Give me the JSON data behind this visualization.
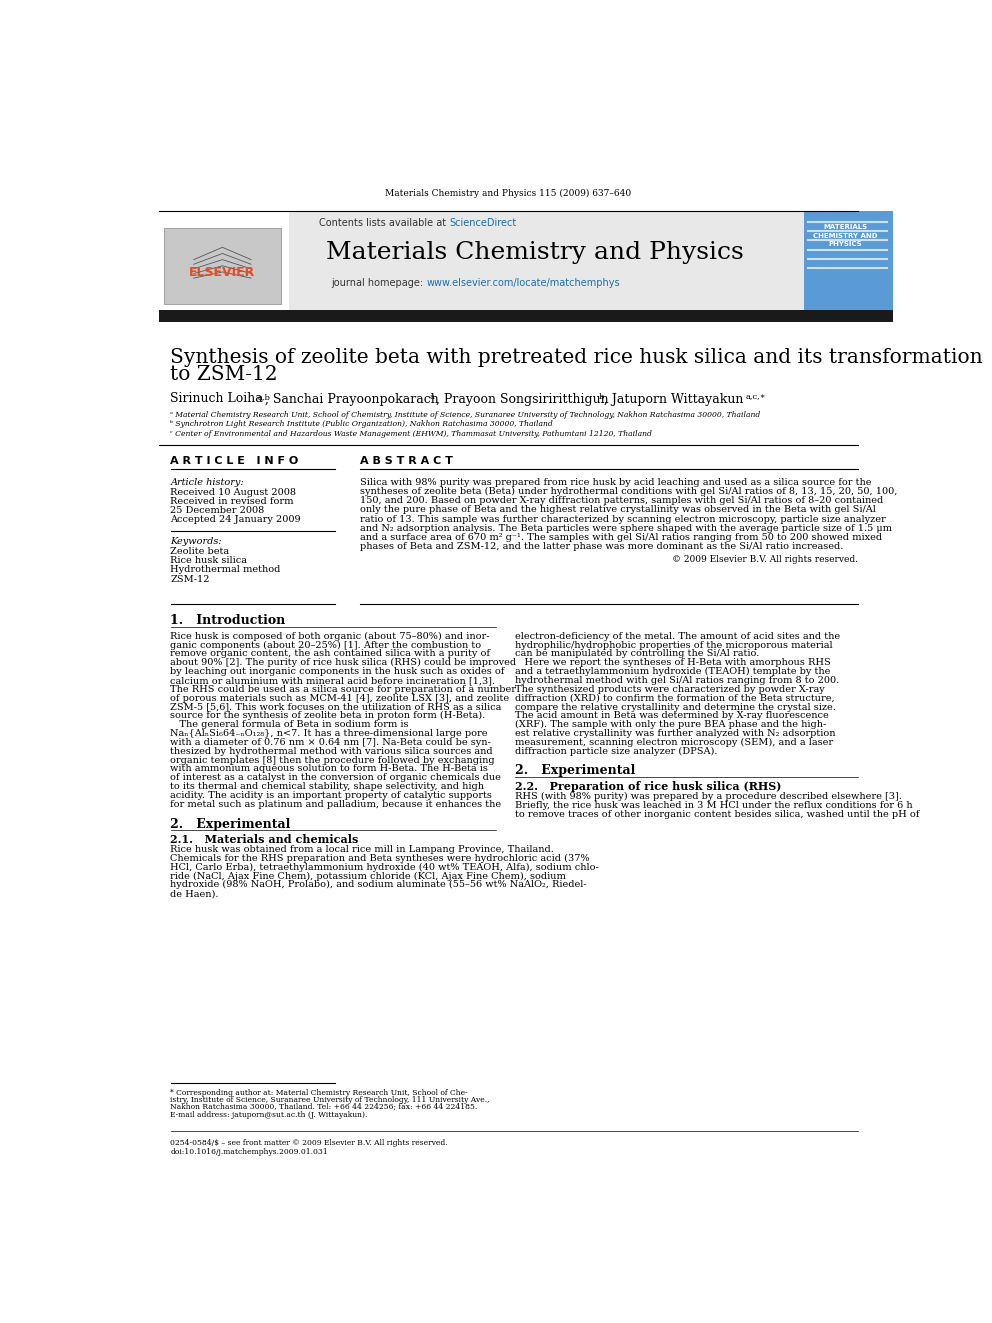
{
  "journal_info": "Materials Chemistry and Physics 115 (2009) 637–640",
  "contents_line": "Contents lists available at ScienceDirect",
  "journal_name": "Materials Chemistry and Physics",
  "journal_homepage": "journal homepage: www.elsevier.com/locate/matchemphys",
  "title_line1": "Synthesis of zeolite beta with pretreated rice husk silica and its transformation",
  "title_line2": "to ZSM-12",
  "affil_a": "ᵃ Material Chemistry Research Unit, School of Chemistry, Institute of Science, Suranaree University of Technology, Nakhon Ratchasima 30000, Thailand",
  "affil_b": "ᵇ Synchrotron Light Research Institute (Public Organization), Nakhon Ratchasima 30000, Thailand",
  "affil_c": "ᶜ Center of Environmental and Hazardous Waste Management (EHWM), Thammasat University, Pathumtani 12120, Thailand",
  "article_info_header": "A R T I C L E   I N F O",
  "abstract_header": "A B S T R A C T",
  "article_history_label": "Article history:",
  "received": "Received 10 August 2008",
  "revised": "Received in revised form",
  "revised2": "25 December 2008",
  "accepted": "Accepted 24 January 2009",
  "keywords_label": "Keywords:",
  "keywords": [
    "Zeolite beta",
    "Rice husk silica",
    "Hydrothermal method",
    "ZSM-12"
  ],
  "copyright": "© 2009 Elsevier B.V. All rights reserved.",
  "section1_header": "1.   Introduction",
  "section2_header": "2.   Experimental",
  "section21_header": "2.1.   Materials and chemicals",
  "section22_header": "2.2.   Preparation of rice husk silica (RHS)",
  "footnote_line1": "* Corresponding author at: Material Chemistry Research Unit, School of Che-",
  "footnote_line2": "istry, Institute of Science, Suranaree University of Technology, 111 University Ave.,",
  "footnote_line3": "Nakhon Ratchasima 30000, Thailand. Tel: +66 44 224256; fax: +66 44 224185.",
  "footnote_email": "E-mail address: jatuporn@sut.ac.th (J. Wittayakun).",
  "issn_line": "0254-0584/$ – see front matter © 2009 Elsevier B.V. All rights reserved.",
  "doi_line": "doi:10.1016/j.matchemphys.2009.01.031",
  "header_bg": "#e8e8e8",
  "sciencedirect_color": "#1a6fa8",
  "url_color": "#1a6fa8",
  "black_bar_color": "#1a1a1a",
  "abstract_lines": [
    "Silica with 98% purity was prepared from rice husk by acid leaching and used as a silica source for the",
    "syntheses of zeolite beta (Beta) under hydrothermal conditions with gel Si/Al ratios of 8, 13, 15, 20, 50, 100,",
    "150, and 200. Based on powder X-ray diffraction patterns, samples with gel Si/Al ratios of 8–20 contained",
    "only the pure phase of Beta and the highest relative crystallinity was observed in the Beta with gel Si/Al",
    "ratio of 13. This sample was further characterized by scanning electron microscopy, particle size analyzer",
    "and N₂ adsorption analysis. The Beta particles were sphere shaped with the average particle size of 1.5 μm",
    "and a surface area of 670 m² g⁻¹. The samples with gel Si/Al ratios ranging from 50 to 200 showed mixed",
    "phases of Beta and ZSM-12, and the latter phase was more dominant as the Si/Al ratio increased."
  ],
  "col1_lines": [
    "Rice husk is composed of both organic (about 75–80%) and inor-",
    "ganic components (about 20–25%) [1]. After the combustion to",
    "remove organic content, the ash contained silica with a purity of",
    "about 90% [2]. The purity of rice husk silica (RHS) could be improved",
    "by leaching out inorganic components in the husk such as oxides of",
    "calcium or aluminium with mineral acid before incineration [1,3].",
    "The RHS could be used as a silica source for preparation of a number",
    "of porous materials such as MCM-41 [4], zeolite LSX [3], and zeolite",
    "ZSM-5 [5,6]. This work focuses on the utilization of RHS as a silica",
    "source for the synthesis of zeolite beta in proton form (H-Beta).",
    "   The general formula of Beta in sodium form is",
    "Naₙ{AlₙSi₆64₋ₙO₁₂₈}, n<7. It has a three-dimensional large pore",
    "with a diameter of 0.76 nm × 0.64 nm [7]. Na-Beta could be syn-",
    "thesized by hydrothermal method with various silica sources and",
    "organic templates [8] then the procedure followed by exchanging",
    "with ammonium aqueous solution to form H-Beta. The H-Beta is",
    "of interest as a catalyst in the conversion of organic chemicals due",
    "to its thermal and chemical stability, shape selectivity, and high",
    "acidity. The acidity is an important property of catalytic supports",
    "for metal such as platinum and palladium, because it enhances the"
  ],
  "col2_intro_lines": [
    "electron-deficiency of the metal. The amount of acid sites and the",
    "hydrophilic/hydrophobic properties of the microporous material",
    "can be manipulated by controlling the Si/Al ratio.",
    "   Here we report the syntheses of H-Beta with amorphous RHS",
    "and a tetraethylammonium hydroxide (TEAOH) template by the",
    "hydrothermal method with gel Si/Al ratios ranging from 8 to 200.",
    "The synthesized products were characterized by powder X-ray",
    "diffraction (XRD) to confirm the formation of the Beta structure,",
    "compare the relative crystallinity and determine the crystal size.",
    "The acid amount in Beta was determined by X-ray fluorescence",
    "(XRF). The sample with only the pure BEA phase and the high-",
    "est relative crystallinity was further analyzed with N₂ adsorption",
    "measurement, scanning electron microscopy (SEM), and a laser",
    "diffraction particle size analyzer (DPSA)."
  ],
  "sec21_lines": [
    "Rice husk was obtained from a local rice mill in Lampang Province, Thailand.",
    "Chemicals for the RHS preparation and Beta syntheses were hydrochloric acid (37%",
    "HCl, Carlo Erba), tetraethylammonium hydroxide (40 wt% TEAOH, Alfa), sodium chlo-",
    "ride (NaCl, Ajax Fine Chem), potassium chloride (KCl, Ajax Fine Chem), sodium",
    "hydroxide (98% NaOH, Prolabo), and sodium aluminate (55–56 wt% NaAlO₂, Riedel-",
    "de Haen)."
  ],
  "sec22_lines": [
    "RHS (with 98% purity) was prepared by a procedure described elsewhere [3].",
    "Briefly, the rice husk was leached in 3 M HCl under the reflux conditions for 6 h",
    "to remove traces of other inorganic content besides silica, washed until the pH of"
  ]
}
